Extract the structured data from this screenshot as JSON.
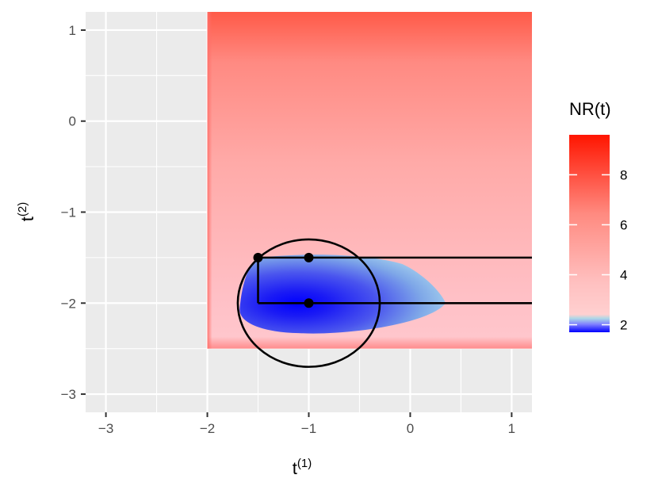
{
  "chart_data": {
    "type": "heatmap",
    "title": "",
    "xlabel": {
      "base": "t",
      "sup": "(1)"
    },
    "ylabel": {
      "base": "t",
      "sup": "(2)"
    },
    "xlim": [
      -3.2,
      1.2
    ],
    "ylim": [
      -3.2,
      1.2
    ],
    "x_ticks": [
      -3,
      -2,
      -1,
      0,
      1
    ],
    "x_tick_labels": [
      "−3",
      "−2",
      "−1",
      "0",
      "1"
    ],
    "y_ticks": [
      -3,
      -2,
      -1,
      0,
      1
    ],
    "y_tick_labels": [
      "−3",
      "−2",
      "−1",
      "0",
      "1"
    ],
    "grid": true,
    "panel_background": "#ebebeb",
    "grid_color": "#ffffff",
    "heatmap": {
      "x_range": [
        -2,
        1.2
      ],
      "y_range": [
        -2.5,
        1.2
      ],
      "value_range": [
        1.7,
        9.6
      ],
      "low_color": "#0000ff",
      "mid_color": "#ffffff",
      "high_color": "#ff0000",
      "low_region_color": "#add8e6"
    },
    "legend": {
      "title": "NR(t)",
      "position": "right",
      "breaks": [
        2,
        4,
        6,
        8
      ],
      "break_labels": [
        "2",
        "4",
        "6",
        "8"
      ]
    },
    "annotations": {
      "circle": {
        "center": [
          -1,
          -2
        ],
        "radius": 0.7
      },
      "points": [
        {
          "x": -1.5,
          "y": -1.5
        },
        {
          "x": -1,
          "y": -1.5
        },
        {
          "x": -1,
          "y": -2
        }
      ],
      "segments": [
        {
          "from": [
            -1.5,
            -1.5
          ],
          "to": [
            1.2,
            -1.5
          ]
        },
        {
          "from": [
            -1.5,
            -1.5
          ],
          "to": [
            -1.5,
            -2
          ]
        },
        {
          "from": [
            -1.5,
            -2
          ],
          "to": [
            1.2,
            -2
          ]
        }
      ]
    }
  }
}
